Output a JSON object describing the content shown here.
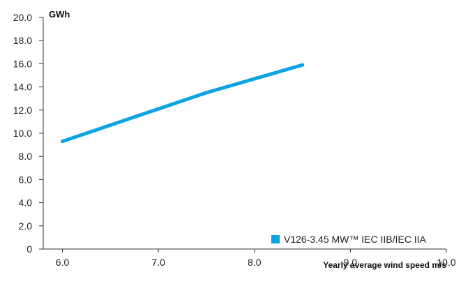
{
  "chart_data": {
    "type": "line",
    "xlabel": "Yearly average wind speed m/s",
    "ylabel": "GWh",
    "x_ticks": [
      "6.0",
      "7.0",
      "8.0",
      "9.0",
      "10.0"
    ],
    "y_ticks": [
      "0",
      "2.0",
      "4.0",
      "6.0",
      "8.0",
      "10.0",
      "12.0",
      "14.0",
      "16.0",
      "18.0",
      "20.0"
    ],
    "xlim": [
      5.8,
      10.0
    ],
    "ylim": [
      0,
      20
    ],
    "series": [
      {
        "name": "V126-3.45 MW™ IEC IIB/IEC IIA",
        "color": "#0AA3E3",
        "x": [
          6.0,
          6.5,
          7.0,
          7.5,
          8.0,
          8.5
        ],
        "y": [
          9.3,
          10.7,
          12.1,
          13.5,
          14.7,
          15.9
        ]
      }
    ],
    "legend": "bottom-right",
    "grid": false
  }
}
